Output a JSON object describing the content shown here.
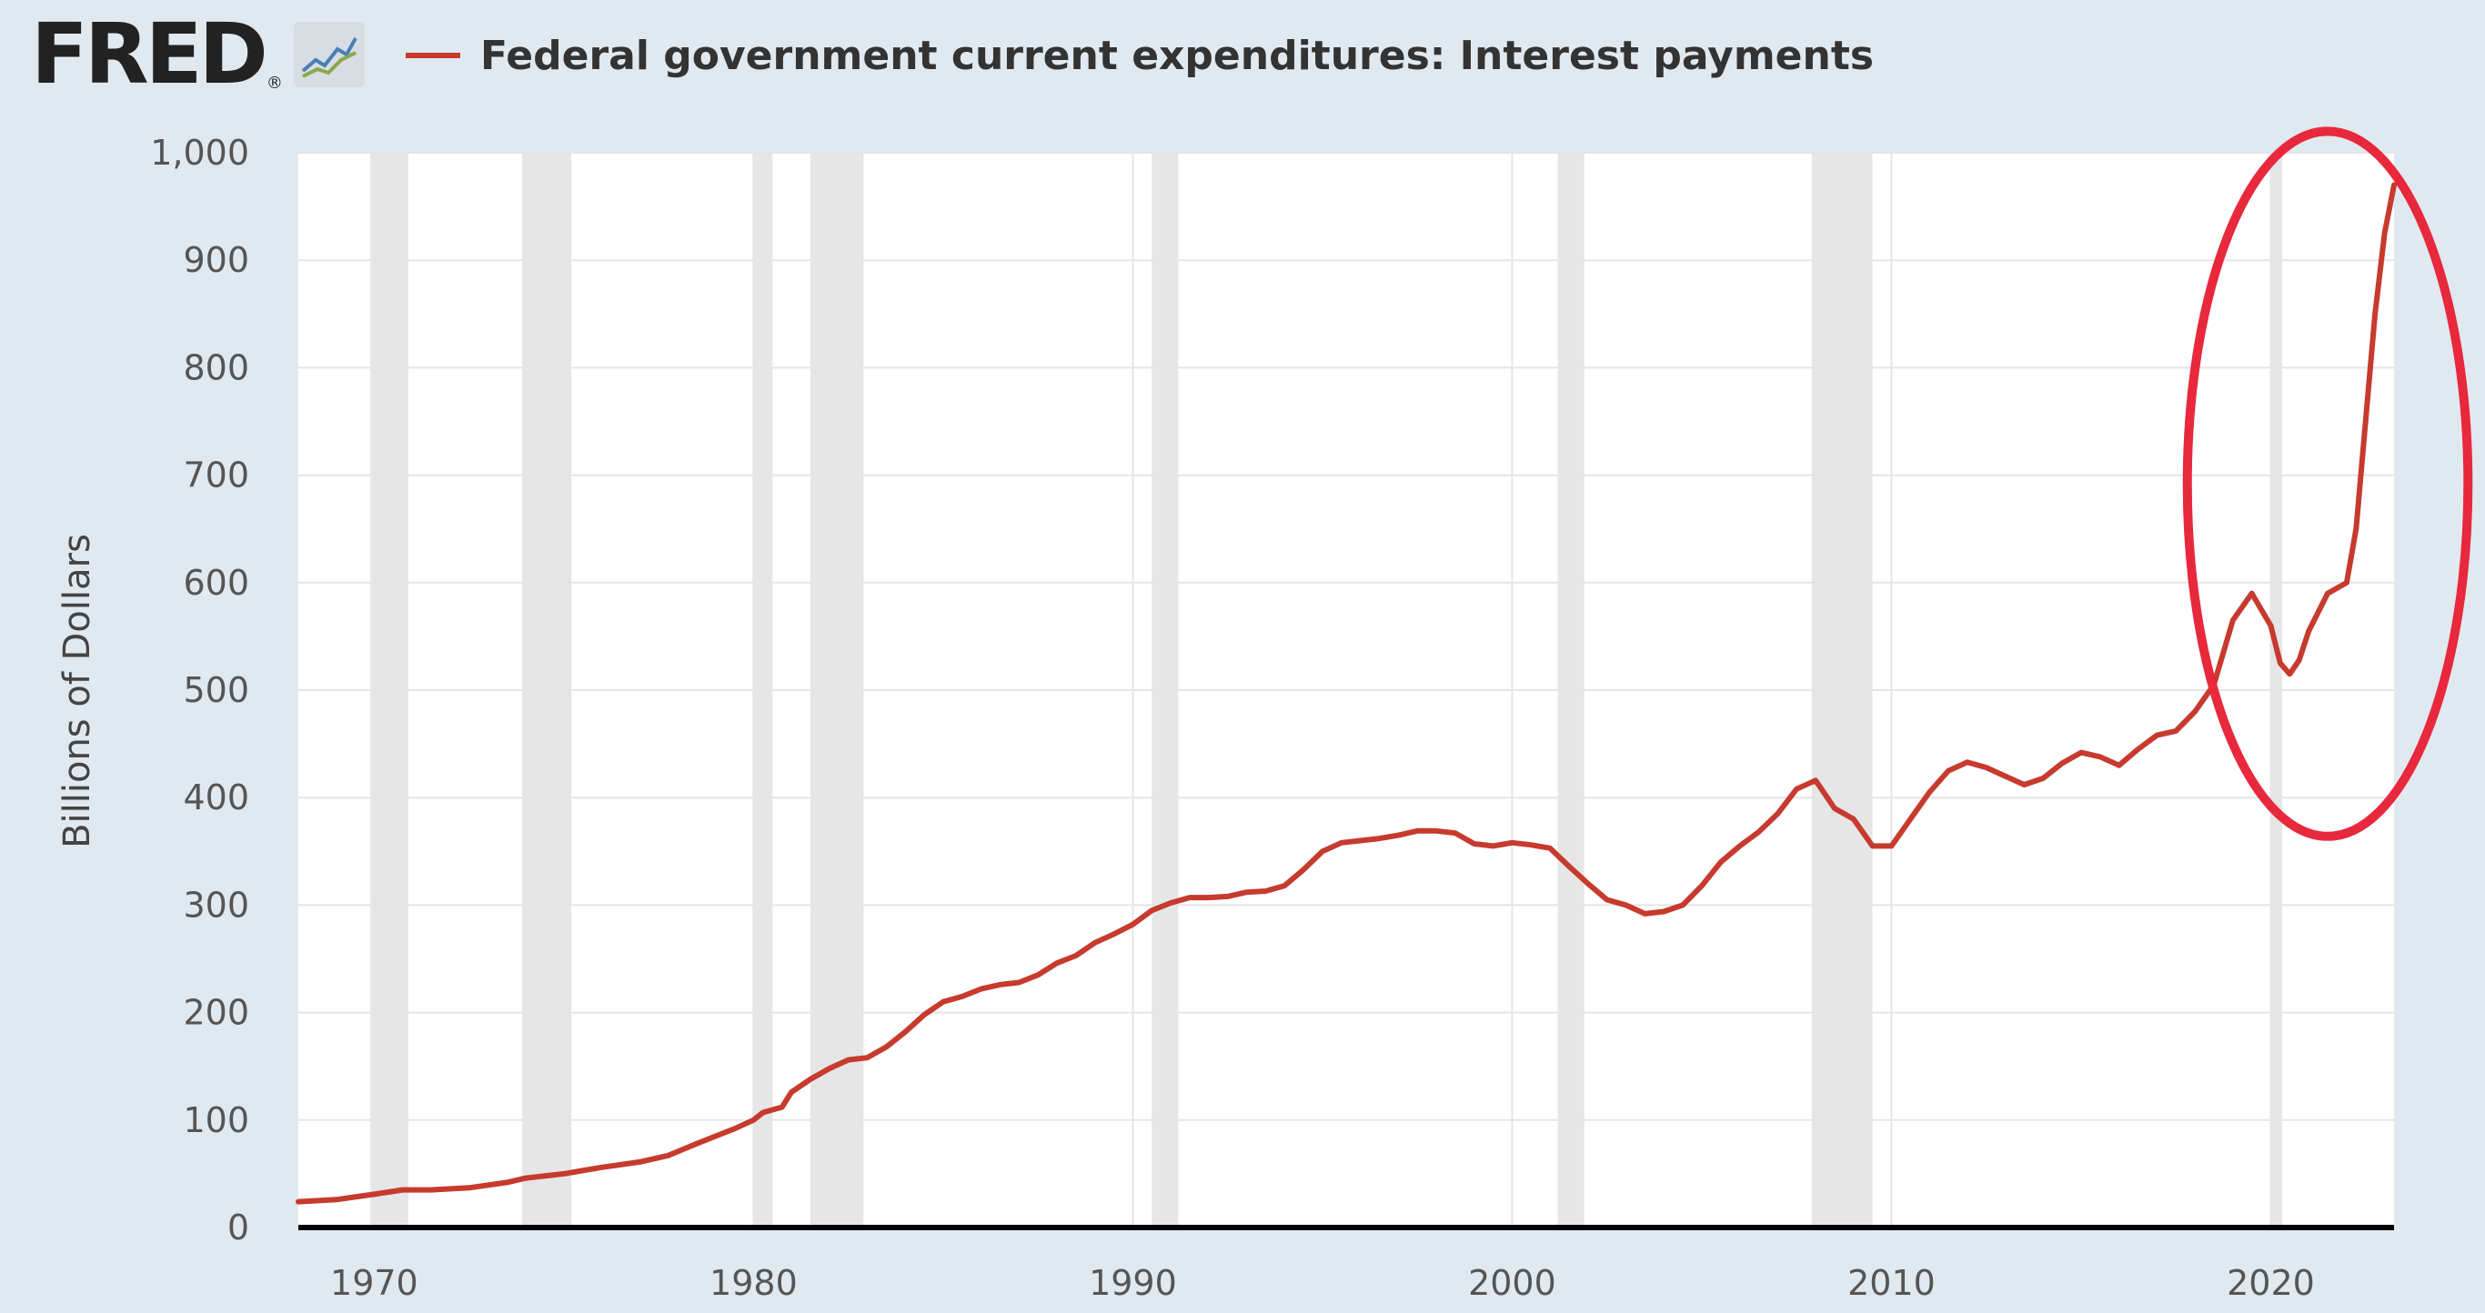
{
  "header": {
    "logo_text": "FRED",
    "logo_reg": "®",
    "logo_icon": "chart-line-icon"
  },
  "colors": {
    "series": "#c73a2e",
    "recession": "#e6e6e6",
    "grid": "#e5e5e5",
    "annotation": "#e8283c",
    "background": "#e1e9f0"
  },
  "chart_data": {
    "type": "line",
    "title": "",
    "xlabel": "",
    "ylabel": "Billions of Dollars",
    "ylim": [
      0,
      1000
    ],
    "xlim": [
      1968.0,
      2023.25
    ],
    "y_ticks": [
      {
        "value": 0,
        "label": "0"
      },
      {
        "value": 100,
        "label": "100"
      },
      {
        "value": 200,
        "label": "200"
      },
      {
        "value": 300,
        "label": "300"
      },
      {
        "value": 400,
        "label": "400"
      },
      {
        "value": 500,
        "label": "500"
      },
      {
        "value": 600,
        "label": "600"
      },
      {
        "value": 700,
        "label": "700"
      },
      {
        "value": 800,
        "label": "800"
      },
      {
        "value": 900,
        "label": "900"
      },
      {
        "value": 1000,
        "label": "1,000"
      }
    ],
    "x_ticks": [
      {
        "value": 1970,
        "label": "1970"
      },
      {
        "value": 1980,
        "label": "1980"
      },
      {
        "value": 1990,
        "label": "1990"
      },
      {
        "value": 2000,
        "label": "2000"
      },
      {
        "value": 2010,
        "label": "2010"
      },
      {
        "value": 2020,
        "label": "2020"
      }
    ],
    "grid": true,
    "legend": "top-left",
    "recessions": [
      [
        1969.9,
        1970.9
      ],
      [
        1973.9,
        1975.2
      ],
      [
        1980.0,
        1980.5
      ],
      [
        1981.5,
        1982.9
      ],
      [
        1990.5,
        1991.2
      ],
      [
        2001.2,
        2001.9
      ],
      [
        2007.9,
        2009.5
      ],
      [
        2020.0,
        2020.3
      ]
    ],
    "annotation": {
      "shape": "ellipse",
      "center": [
        2021.5,
        692
      ],
      "radius": [
        3.7,
        328
      ]
    },
    "series": [
      {
        "name": "Federal government current expenditures: Interest payments",
        "points": [
          [
            1968.0,
            24
          ],
          [
            1969.0,
            26
          ],
          [
            1970.0,
            31
          ],
          [
            1970.75,
            35
          ],
          [
            1971.5,
            35
          ],
          [
            1972.5,
            37
          ],
          [
            1973.5,
            42
          ],
          [
            1974.0,
            46
          ],
          [
            1975.0,
            50
          ],
          [
            1976.0,
            56
          ],
          [
            1977.0,
            61
          ],
          [
            1977.75,
            67
          ],
          [
            1978.5,
            78
          ],
          [
            1979.0,
            85
          ],
          [
            1979.5,
            92
          ],
          [
            1980.0,
            100
          ],
          [
            1980.25,
            107
          ],
          [
            1980.75,
            112
          ],
          [
            1981.0,
            126
          ],
          [
            1981.5,
            138
          ],
          [
            1982.0,
            148
          ],
          [
            1982.5,
            156
          ],
          [
            1983.0,
            158
          ],
          [
            1983.5,
            168
          ],
          [
            1984.0,
            182
          ],
          [
            1984.5,
            198
          ],
          [
            1985.0,
            210
          ],
          [
            1985.5,
            215
          ],
          [
            1986.0,
            222
          ],
          [
            1986.5,
            226
          ],
          [
            1987.0,
            228
          ],
          [
            1987.5,
            235
          ],
          [
            1988.0,
            246
          ],
          [
            1988.5,
            253
          ],
          [
            1989.0,
            265
          ],
          [
            1989.5,
            273
          ],
          [
            1990.0,
            282
          ],
          [
            1990.5,
            295
          ],
          [
            1991.0,
            302
          ],
          [
            1991.5,
            307
          ],
          [
            1992.0,
            307
          ],
          [
            1992.5,
            308
          ],
          [
            1993.0,
            312
          ],
          [
            1993.5,
            313
          ],
          [
            1994.0,
            318
          ],
          [
            1994.5,
            333
          ],
          [
            1995.0,
            350
          ],
          [
            1995.5,
            358
          ],
          [
            1996.0,
            360
          ],
          [
            1996.5,
            362
          ],
          [
            1997.0,
            365
          ],
          [
            1997.5,
            369
          ],
          [
            1998.0,
            369
          ],
          [
            1998.5,
            367
          ],
          [
            1999.0,
            357
          ],
          [
            1999.5,
            355
          ],
          [
            2000.0,
            358
          ],
          [
            2000.5,
            356
          ],
          [
            2001.0,
            353
          ],
          [
            2001.5,
            336
          ],
          [
            2002.0,
            320
          ],
          [
            2002.5,
            305
          ],
          [
            2003.0,
            300
          ],
          [
            2003.5,
            292
          ],
          [
            2004.0,
            294
          ],
          [
            2004.5,
            300
          ],
          [
            2005.0,
            318
          ],
          [
            2005.5,
            340
          ],
          [
            2006.0,
            355
          ],
          [
            2006.5,
            368
          ],
          [
            2007.0,
            385
          ],
          [
            2007.5,
            408
          ],
          [
            2008.0,
            416
          ],
          [
            2008.5,
            390
          ],
          [
            2009.0,
            380
          ],
          [
            2009.5,
            355
          ],
          [
            2010.0,
            355
          ],
          [
            2010.5,
            380
          ],
          [
            2011.0,
            405
          ],
          [
            2011.5,
            425
          ],
          [
            2012.0,
            433
          ],
          [
            2012.5,
            428
          ],
          [
            2013.0,
            420
          ],
          [
            2013.5,
            412
          ],
          [
            2014.0,
            418
          ],
          [
            2014.5,
            432
          ],
          [
            2015.0,
            442
          ],
          [
            2015.5,
            438
          ],
          [
            2016.0,
            430
          ],
          [
            2016.5,
            445
          ],
          [
            2017.0,
            458
          ],
          [
            2017.5,
            462
          ],
          [
            2018.0,
            480
          ],
          [
            2018.5,
            505
          ],
          [
            2019.0,
            565
          ],
          [
            2019.5,
            590
          ],
          [
            2020.0,
            560
          ],
          [
            2020.25,
            525
          ],
          [
            2020.5,
            515
          ],
          [
            2020.75,
            528
          ],
          [
            2021.0,
            555
          ],
          [
            2021.5,
            590
          ],
          [
            2022.0,
            600
          ],
          [
            2022.25,
            650
          ],
          [
            2022.5,
            750
          ],
          [
            2022.75,
            850
          ],
          [
            2023.0,
            925
          ],
          [
            2023.25,
            970
          ]
        ]
      }
    ]
  }
}
